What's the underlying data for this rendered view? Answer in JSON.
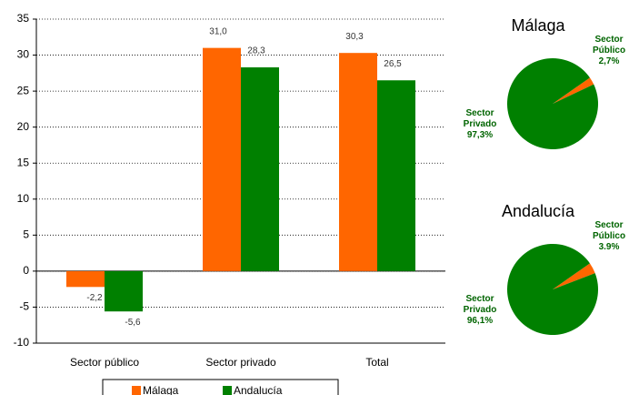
{
  "chart_data": [
    {
      "type": "bar",
      "categories": [
        "Sector público",
        "Sector privado",
        "Total"
      ],
      "series": [
        {
          "name": "Málaga",
          "color": "#ff6600",
          "values": [
            -2.2,
            31.0,
            30.3
          ],
          "value_labels": [
            "-2,2",
            "31,0",
            "30,3"
          ]
        },
        {
          "name": "Andalucía",
          "color": "#008000",
          "values": [
            -5.6,
            28.3,
            26.5
          ],
          "value_labels": [
            "-5,6",
            "28,3",
            "26,5"
          ]
        }
      ],
      "ylim": [
        -10,
        35
      ],
      "yticks": [
        -10,
        -5,
        0,
        5,
        10,
        15,
        20,
        25,
        30,
        35
      ],
      "grid": true
    },
    {
      "type": "pie",
      "title": "Málaga",
      "categories": [
        "Sector Público",
        "Sector Privado"
      ],
      "values": [
        2.7,
        97.3
      ],
      "value_labels": [
        "2,7%",
        "97,3%"
      ],
      "colors": [
        "#ff6600",
        "#008000"
      ]
    },
    {
      "type": "pie",
      "title": "Andalucía",
      "categories": [
        "Sector Público",
        "Sector Privado"
      ],
      "values": [
        3.9,
        96.1
      ],
      "value_labels": [
        "3.9%",
        "96,1%"
      ],
      "colors": [
        "#ff6600",
        "#008000"
      ]
    }
  ]
}
